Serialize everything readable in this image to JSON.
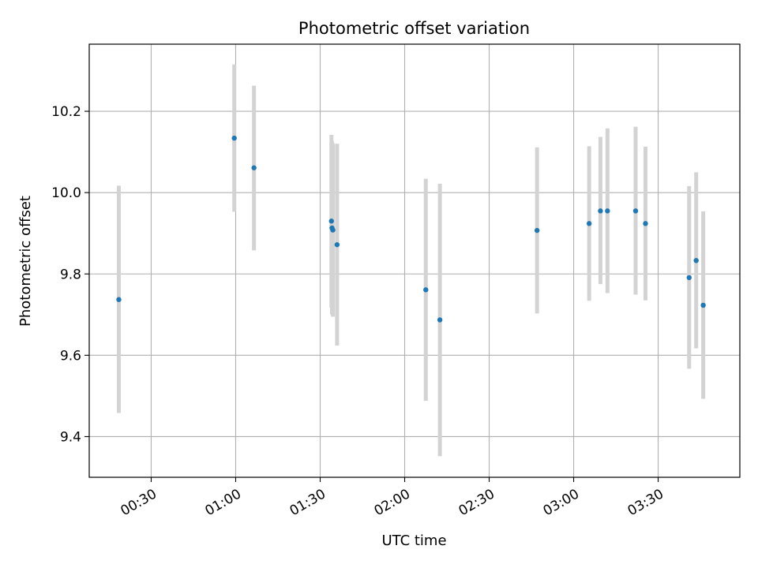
{
  "chart_data": {
    "type": "scatter",
    "title": "Photometric offset variation",
    "xlabel": "UTC time",
    "ylabel": "Photometric offset",
    "xlim_minutes": [
      8,
      239
    ],
    "ylim": [
      9.3,
      10.365
    ],
    "grid": true,
    "x_ticks": [
      {
        "minutes": 30,
        "label": "00:30"
      },
      {
        "minutes": 60,
        "label": "01:00"
      },
      {
        "minutes": 90,
        "label": "01:30"
      },
      {
        "minutes": 120,
        "label": "02:00"
      },
      {
        "minutes": 150,
        "label": "02:30"
      },
      {
        "minutes": 180,
        "label": "03:00"
      },
      {
        "minutes": 210,
        "label": "03:30"
      }
    ],
    "y_ticks": [
      {
        "value": 9.4,
        "label": "9.4"
      },
      {
        "value": 9.6,
        "label": "9.6"
      },
      {
        "value": 9.8,
        "label": "9.8"
      },
      {
        "value": 10.0,
        "label": "10.0"
      },
      {
        "value": 10.2,
        "label": "10.2"
      }
    ],
    "points": [
      {
        "minutes": 18.5,
        "y": 9.737,
        "low": 9.458,
        "high": 10.017
      },
      {
        "minutes": 59.5,
        "y": 10.134,
        "low": 9.953,
        "high": 10.315
      },
      {
        "minutes": 66.5,
        "y": 10.061,
        "low": 9.858,
        "high": 10.263
      },
      {
        "minutes": 94.0,
        "y": 9.93,
        "low": 9.717,
        "high": 10.142
      },
      {
        "minutes": 94.2,
        "y": 9.913,
        "low": 9.7,
        "high": 10.126
      },
      {
        "minutes": 94.5,
        "y": 9.908,
        "low": 9.695,
        "high": 10.121
      },
      {
        "minutes": 96.0,
        "y": 9.872,
        "low": 9.624,
        "high": 10.12
      },
      {
        "minutes": 127.5,
        "y": 9.761,
        "low": 9.488,
        "high": 10.034
      },
      {
        "minutes": 132.5,
        "y": 9.687,
        "low": 9.352,
        "high": 10.022
      },
      {
        "minutes": 167.0,
        "y": 9.907,
        "low": 9.703,
        "high": 10.111
      },
      {
        "minutes": 185.5,
        "y": 9.924,
        "low": 9.734,
        "high": 10.114
      },
      {
        "minutes": 189.5,
        "y": 9.955,
        "low": 9.775,
        "high": 10.137
      },
      {
        "minutes": 192.0,
        "y": 9.955,
        "low": 9.753,
        "high": 10.158
      },
      {
        "minutes": 202.0,
        "y": 9.955,
        "low": 9.749,
        "high": 10.162
      },
      {
        "minutes": 205.5,
        "y": 9.924,
        "low": 9.735,
        "high": 10.113
      },
      {
        "minutes": 221.0,
        "y": 9.791,
        "low": 9.567,
        "high": 10.016
      },
      {
        "minutes": 223.5,
        "y": 9.833,
        "low": 9.617,
        "high": 10.05
      },
      {
        "minutes": 226.0,
        "y": 9.723,
        "low": 9.493,
        "high": 9.954
      }
    ],
    "colors": {
      "point": "#1f77b4",
      "errorbar": "#d3d3d3",
      "grid": "#b0b0b0",
      "axis": "#000000"
    }
  }
}
